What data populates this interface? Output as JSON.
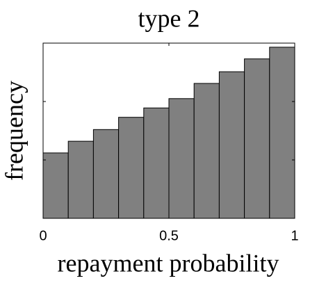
{
  "chart_data": {
    "type": "histogram",
    "title": "type 2",
    "x_label": "repayment probability",
    "y_label": "frequency",
    "bins": [
      0,
      0.1,
      0.2,
      0.3,
      0.4,
      0.5,
      0.6,
      0.7,
      0.8,
      0.9,
      1
    ],
    "values": [
      1.12,
      1.32,
      1.52,
      1.73,
      1.89,
      2.05,
      2.31,
      2.51,
      2.73,
      2.93
    ],
    "color": "#808080",
    "xlim": [
      0,
      1
    ],
    "xticks": [
      0,
      0.5,
      1
    ],
    "ylim": [
      0,
      3
    ],
    "yticks": [
      1,
      2
    ]
  }
}
